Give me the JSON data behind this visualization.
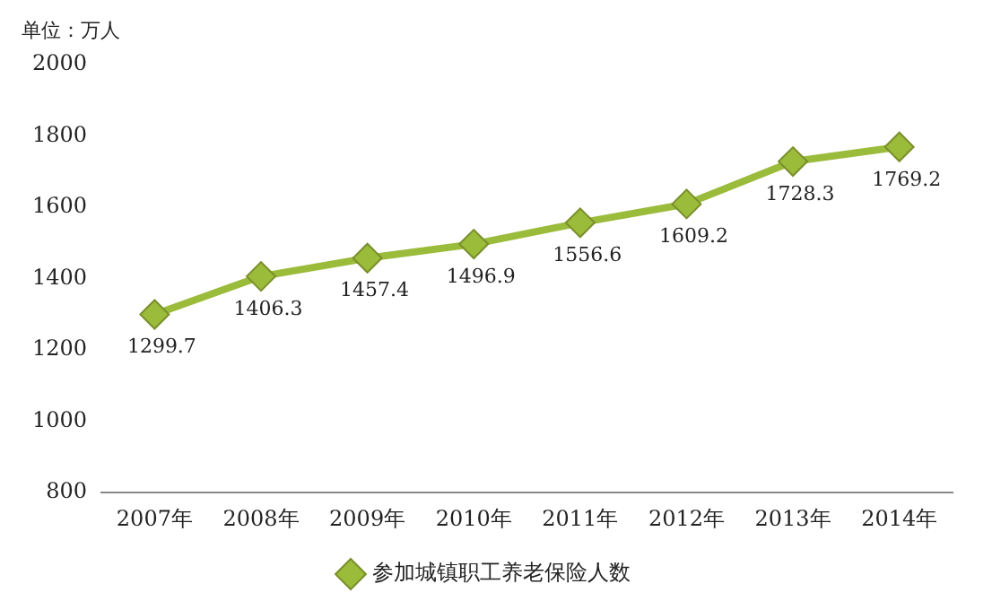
{
  "chart_data": {
    "type": "line",
    "ylabel": "单位：万人",
    "categories": [
      "2007年",
      "2008年",
      "2009年",
      "2010年",
      "2011年",
      "2012年",
      "2013年",
      "2014年"
    ],
    "series": [
      {
        "name": "参加城镇职工养老保险人数",
        "color": "#9bbb3b",
        "values": [
          1299.7,
          1406.3,
          1457.4,
          1496.9,
          1556.6,
          1609.2,
          1728.3,
          1769.2
        ]
      }
    ],
    "ylim": [
      800,
      2000
    ],
    "yticks": [
      800,
      1000,
      1200,
      1400,
      1600,
      1800,
      2000
    ],
    "grid": false,
    "legend": "bottom",
    "marker": "diamond",
    "line_style": "solid",
    "data_labels": true
  }
}
